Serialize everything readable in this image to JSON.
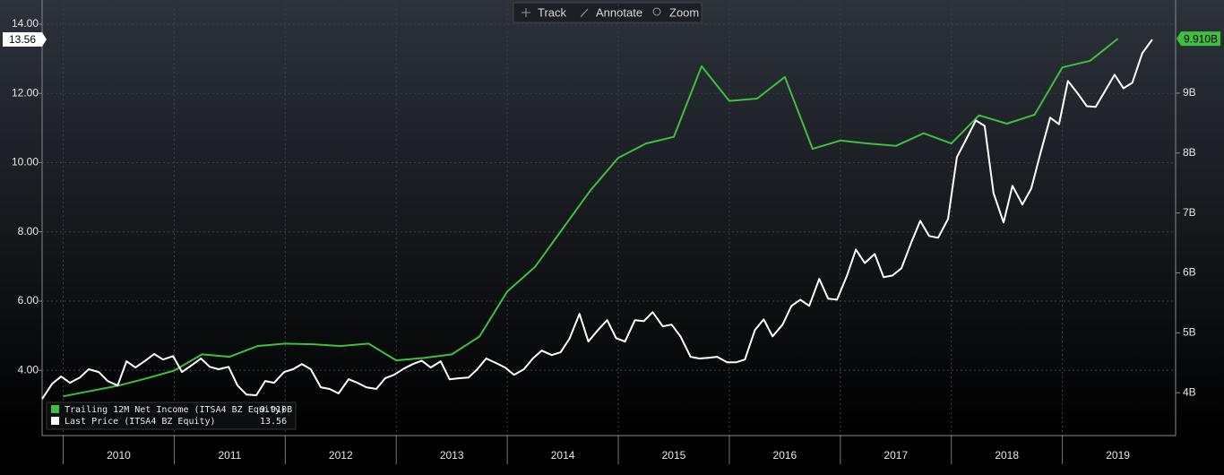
{
  "toolbar": [
    "Track",
    "Annotate",
    "Zoom"
  ],
  "chart_data": {
    "type": "line",
    "xlim": [
      2009.81,
      2020.02
    ],
    "xticks": [
      2010,
      2011,
      2012,
      2013,
      2014,
      2015,
      2016,
      2017,
      2018,
      2019
    ],
    "ylim": [
      2.14,
      14.57
    ],
    "yticks": [
      {
        "value": 4,
        "label": "4.00"
      },
      {
        "value": 6,
        "label": "6.00"
      },
      {
        "value": 8,
        "label": "8.00"
      },
      {
        "value": 10,
        "label": "10.00"
      },
      {
        "value": 12,
        "label": "12.00"
      },
      {
        "value": 14,
        "label": "14.00"
      }
    ],
    "y2lim": [
      3.3,
      10.48
    ],
    "y2ticks": [
      {
        "value": 4,
        "label": "4B"
      },
      {
        "value": 5,
        "label": "5B"
      },
      {
        "value": 6,
        "label": "6B"
      },
      {
        "value": 7,
        "label": "7B"
      },
      {
        "value": 8,
        "label": "8B"
      },
      {
        "value": 9,
        "label": "9B"
      }
    ],
    "grid": true,
    "legend": "lower left",
    "series": [
      {
        "name": "Trailing 12M Net Income (ITSA4 BZ Equity)",
        "color": "#3fbf3f",
        "axis": "y2",
        "last_label": "9.910B",
        "x": [
          2010,
          2010.25,
          2010.5,
          2010.75,
          2011,
          2011.25,
          2011.5,
          2011.75,
          2012,
          2012.25,
          2012.5,
          2012.75,
          2013,
          2013.25,
          2013.5,
          2013.75,
          2014,
          2014.25,
          2014.5,
          2014.75,
          2015,
          2015.25,
          2015.5,
          2015.75,
          2016,
          2016.25,
          2016.5,
          2016.75,
          2017,
          2017.25,
          2017.5,
          2017.75,
          2018,
          2018.25,
          2018.5,
          2018.75,
          2019,
          2019.25,
          2019.5
        ],
        "values": [
          3.94,
          4.03,
          4.12,
          4.24,
          4.37,
          4.64,
          4.6,
          4.78,
          4.82,
          4.81,
          4.78,
          4.82,
          4.54,
          4.58,
          4.64,
          4.94,
          5.69,
          6.1,
          6.74,
          7.38,
          7.92,
          8.16,
          8.27,
          9.45,
          8.87,
          8.91,
          9.27,
          8.07,
          8.21,
          8.16,
          8.12,
          8.33,
          8.16,
          8.63,
          8.49,
          8.64,
          9.43,
          9.54,
          9.91
        ]
      },
      {
        "name": "Last Price (ITSA4 BZ Equity)",
        "color": "#ffffff",
        "axis": "y",
        "last_label": "13.56",
        "x": [
          2009.81,
          2009.9,
          2009.98,
          2010.06,
          2010.15,
          2010.23,
          2010.32,
          2010.4,
          2010.49,
          2010.57,
          2010.65,
          2010.74,
          2010.82,
          2010.9,
          2010.99,
          2011.07,
          2011.15,
          2011.24,
          2011.32,
          2011.4,
          2011.49,
          2011.57,
          2011.65,
          2011.74,
          2011.82,
          2011.9,
          2011.99,
          2012.07,
          2012.15,
          2012.23,
          2012.32,
          2012.4,
          2012.48,
          2012.57,
          2012.65,
          2012.73,
          2012.82,
          2012.9,
          2012.98,
          2013.07,
          2013.15,
          2013.23,
          2013.31,
          2013.4,
          2013.48,
          2013.56,
          2013.65,
          2013.73,
          2013.81,
          2013.9,
          2013.98,
          2014.06,
          2014.15,
          2014.23,
          2014.31,
          2014.4,
          2014.48,
          2014.56,
          2014.65,
          2014.73,
          2014.81,
          2014.9,
          2014.98,
          2015.06,
          2015.15,
          2015.23,
          2015.31,
          2015.4,
          2015.48,
          2015.56,
          2015.65,
          2015.73,
          2015.81,
          2015.89,
          2015.98,
          2016.06,
          2016.14,
          2016.23,
          2016.31,
          2016.39,
          2016.48,
          2016.56,
          2016.64,
          2016.72,
          2016.81,
          2016.89,
          2016.97,
          2017.06,
          2017.14,
          2017.22,
          2017.31,
          2017.39,
          2017.47,
          2017.55,
          2017.64,
          2017.72,
          2017.8,
          2017.88,
          2017.97,
          2018.05,
          2018.13,
          2018.22,
          2018.3,
          2018.38,
          2018.47,
          2018.55,
          2018.64,
          2018.72,
          2018.8,
          2018.89,
          2018.97,
          2019.05,
          2019.14,
          2019.22,
          2019.3,
          2019.39,
          2019.47,
          2019.55,
          2019.63,
          2019.72,
          2019.81
        ],
        "values": [
          3.17,
          3.61,
          3.82,
          3.64,
          3.79,
          4.03,
          3.95,
          3.69,
          3.56,
          4.26,
          4.08,
          4.28,
          4.47,
          4.31,
          4.41,
          3.95,
          4.13,
          4.34,
          4.1,
          4.03,
          4.1,
          3.56,
          3.3,
          3.28,
          3.69,
          3.64,
          3.95,
          4.03,
          4.18,
          4.03,
          3.51,
          3.46,
          3.33,
          3.74,
          3.64,
          3.51,
          3.46,
          3.77,
          3.87,
          4.05,
          4.18,
          4.28,
          4.08,
          4.26,
          3.74,
          3.77,
          3.79,
          4.03,
          4.34,
          4.21,
          4.08,
          3.87,
          4.03,
          4.34,
          4.57,
          4.44,
          4.52,
          4.91,
          5.63,
          4.83,
          5.14,
          5.45,
          4.93,
          4.83,
          5.45,
          5.42,
          5.68,
          5.27,
          5.32,
          4.98,
          4.39,
          4.34,
          4.36,
          4.39,
          4.23,
          4.23,
          4.31,
          5.16,
          5.47,
          4.98,
          5.32,
          5.86,
          6.04,
          5.86,
          6.64,
          6.07,
          6.04,
          6.74,
          7.49,
          7.1,
          7.36,
          6.69,
          6.74,
          6.95,
          7.7,
          8.32,
          7.88,
          7.83,
          8.37,
          10.16,
          10.65,
          11.22,
          11.06,
          9.12,
          8.27,
          9.33,
          8.79,
          9.25,
          10.24,
          11.3,
          11.11,
          12.36,
          11.99,
          11.63,
          11.61,
          12.1,
          12.54,
          12.15,
          12.31,
          13.16,
          13.56
        ]
      }
    ]
  }
}
